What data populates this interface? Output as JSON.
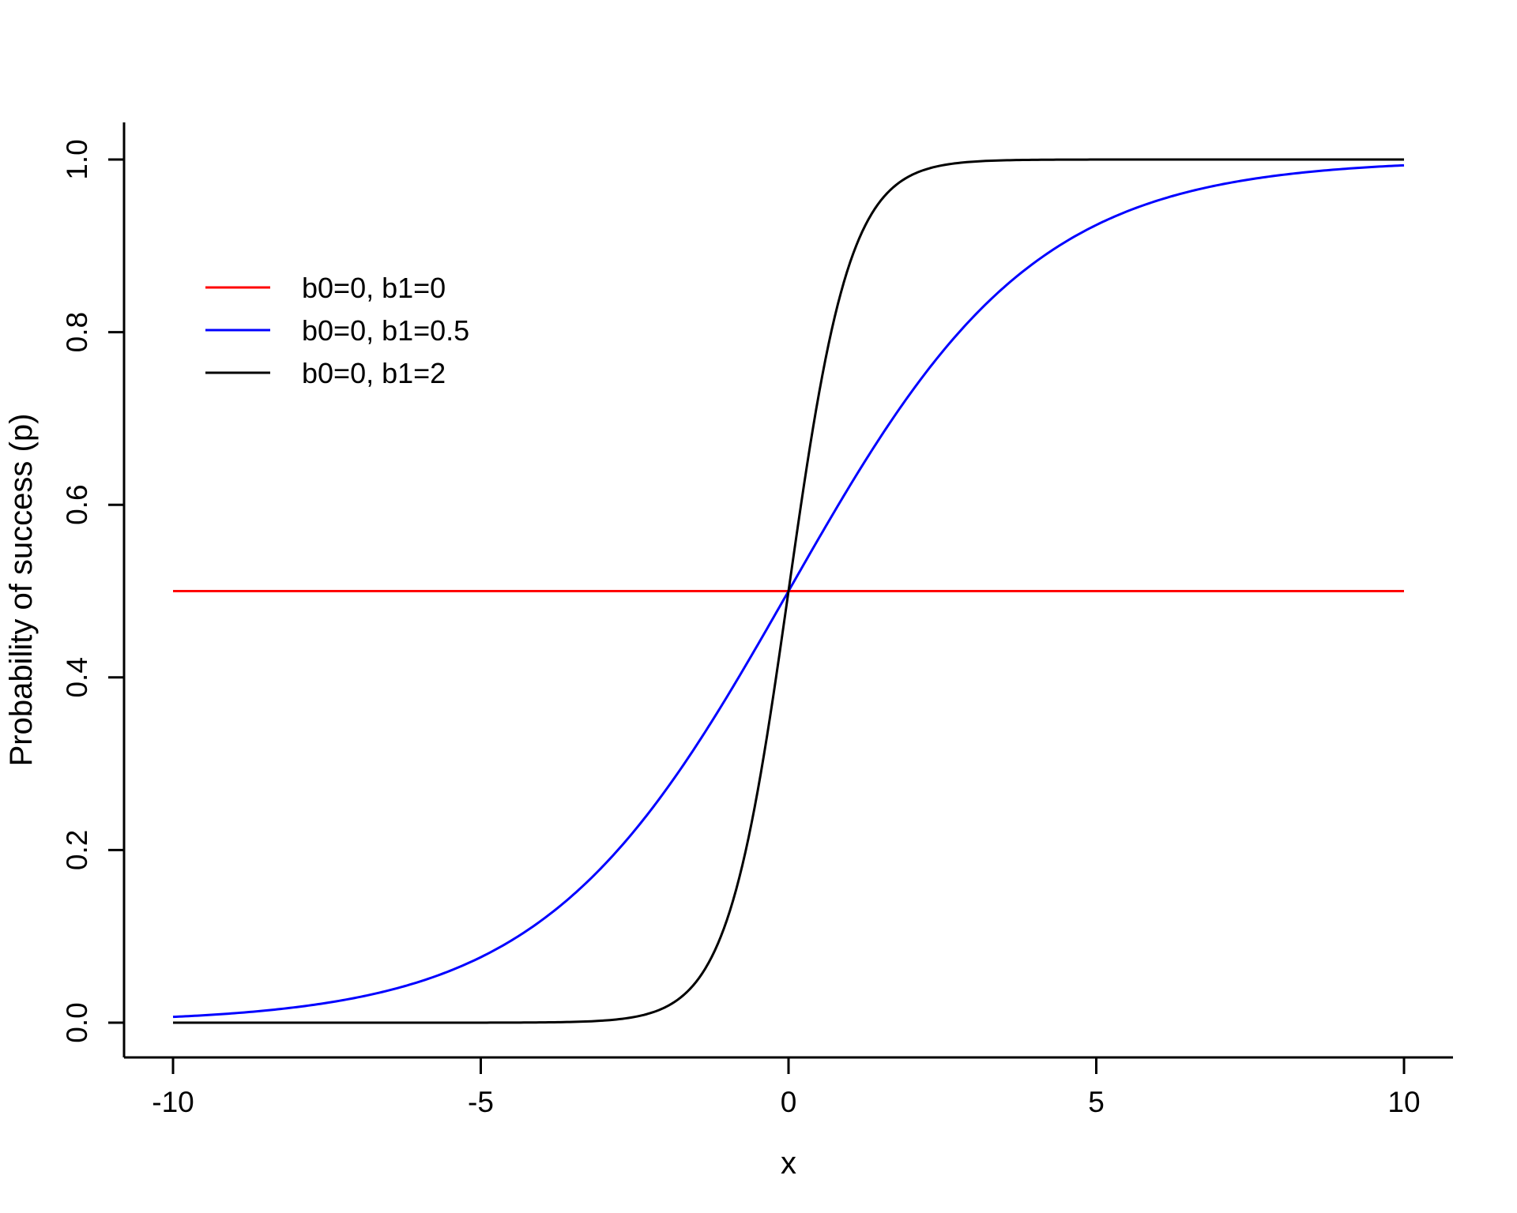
{
  "chart_data": {
    "type": "line",
    "title": "",
    "xlabel": "x",
    "ylabel": "Probability of success (p)",
    "model": "p = 1 / (1 + exp(-(b0 + b1*x)))",
    "x_range": [
      -10,
      10
    ],
    "xlim": [
      -10.8,
      10.8
    ],
    "ylim": [
      -0.04,
      1.04
    ],
    "x_ticks": [
      -10,
      -5,
      0,
      5,
      10
    ],
    "x_tick_labels": [
      "-10",
      "-5",
      "0",
      "5",
      "10"
    ],
    "y_ticks": [
      0.0,
      0.2,
      0.4,
      0.6,
      0.8,
      1.0
    ],
    "y_tick_labels": [
      "0.0",
      "0.2",
      "0.4",
      "0.6",
      "0.8",
      "1.0"
    ],
    "grid": false,
    "box_type": "L",
    "axis_color": "#000000",
    "background_color": "#FFFFFF",
    "legend": {
      "position": "topleft-inset",
      "entries": [
        {
          "label": "b0=0, b1=0",
          "color": "#FF0000"
        },
        {
          "label": "b0=0, b1=0.5",
          "color": "#0000FF"
        },
        {
          "label": "b0=0, b1=2",
          "color": "#000000"
        }
      ]
    },
    "series": [
      {
        "name": "b0=0, b1=0",
        "color": "#FF0000",
        "b0": 0,
        "b1": 0,
        "points": [
          [
            -10,
            0.5
          ],
          [
            -5,
            0.5
          ],
          [
            0,
            0.5
          ],
          [
            5,
            0.5
          ],
          [
            10,
            0.5
          ]
        ]
      },
      {
        "name": "b0=0, b1=0.5",
        "color": "#0000FF",
        "b0": 0,
        "b1": 0.5,
        "points": [
          [
            -10,
            0.0067
          ],
          [
            -9,
            0.011
          ],
          [
            -8,
            0.018
          ],
          [
            -7,
            0.0293
          ],
          [
            -6,
            0.0474
          ],
          [
            -5,
            0.0759
          ],
          [
            -4,
            0.1192
          ],
          [
            -3,
            0.1824
          ],
          [
            -2,
            0.2689
          ],
          [
            -1,
            0.3775
          ],
          [
            0,
            0.5
          ],
          [
            1,
            0.6225
          ],
          [
            2,
            0.7311
          ],
          [
            3,
            0.8176
          ],
          [
            4,
            0.8808
          ],
          [
            5,
            0.9241
          ],
          [
            6,
            0.9526
          ],
          [
            7,
            0.9707
          ],
          [
            8,
            0.982
          ],
          [
            9,
            0.989
          ],
          [
            10,
            0.9933
          ]
        ]
      },
      {
        "name": "b0=0, b1=2",
        "color": "#000000",
        "b0": 0,
        "b1": 2,
        "points": [
          [
            -10,
            0.0
          ],
          [
            -9,
            0.0
          ],
          [
            -8,
            0.0
          ],
          [
            -7,
            0.0
          ],
          [
            -6,
            0.0
          ],
          [
            -5,
            0.0
          ],
          [
            -4,
            0.0003
          ],
          [
            -3,
            0.0025
          ],
          [
            -2,
            0.018
          ],
          [
            -1,
            0.1192
          ],
          [
            0,
            0.5
          ],
          [
            1,
            0.8808
          ],
          [
            2,
            0.982
          ],
          [
            3,
            0.9975
          ],
          [
            4,
            0.9997
          ],
          [
            5,
            1.0
          ],
          [
            6,
            1.0
          ],
          [
            7,
            1.0
          ],
          [
            8,
            1.0
          ],
          [
            9,
            1.0
          ],
          [
            10,
            1.0
          ]
        ]
      }
    ]
  }
}
